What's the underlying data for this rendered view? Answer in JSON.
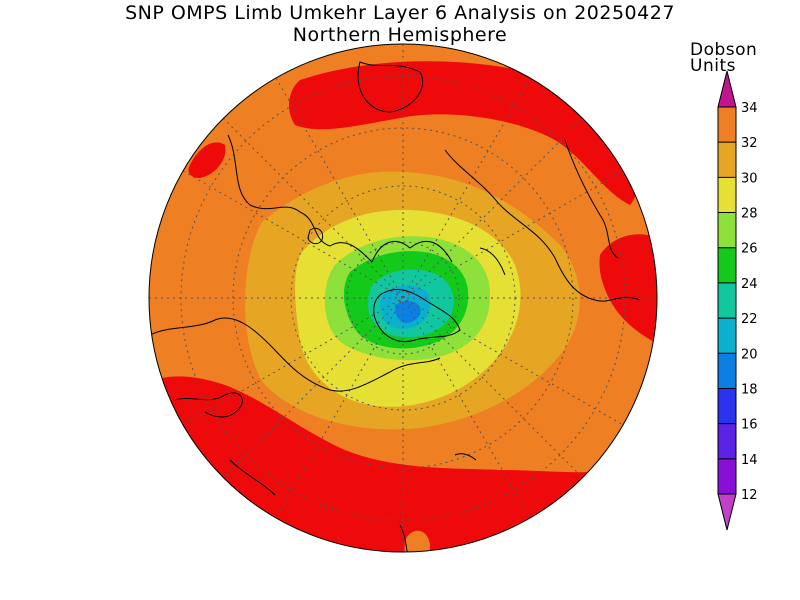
{
  "header": {
    "title": "SNP OMPS Limb Umkehr Layer 6 Analysis on 20250427",
    "subtitle": "Northern Hemisphere"
  },
  "colorbar": {
    "units_line1": "Dobson",
    "units_line2": "Units",
    "labels": [
      "12",
      "14",
      "16",
      "18",
      "20",
      "22",
      "24",
      "26",
      "28",
      "30",
      "32",
      "34"
    ],
    "colors": [
      "#8a0fd6",
      "#5a23e6",
      "#2a33ee",
      "#0b7fe3",
      "#0bb0cf",
      "#11c7a0",
      "#13c91a",
      "#8ee03a",
      "#e6e034",
      "#e6a624",
      "#ee7f23",
      "#ee0a0a"
    ],
    "low_arrow_color": "#c040c8",
    "high_arrow_color": "#c0158c"
  },
  "map": {
    "projection": "north-polar-stereographic",
    "background_color": "#ee7f23"
  }
}
